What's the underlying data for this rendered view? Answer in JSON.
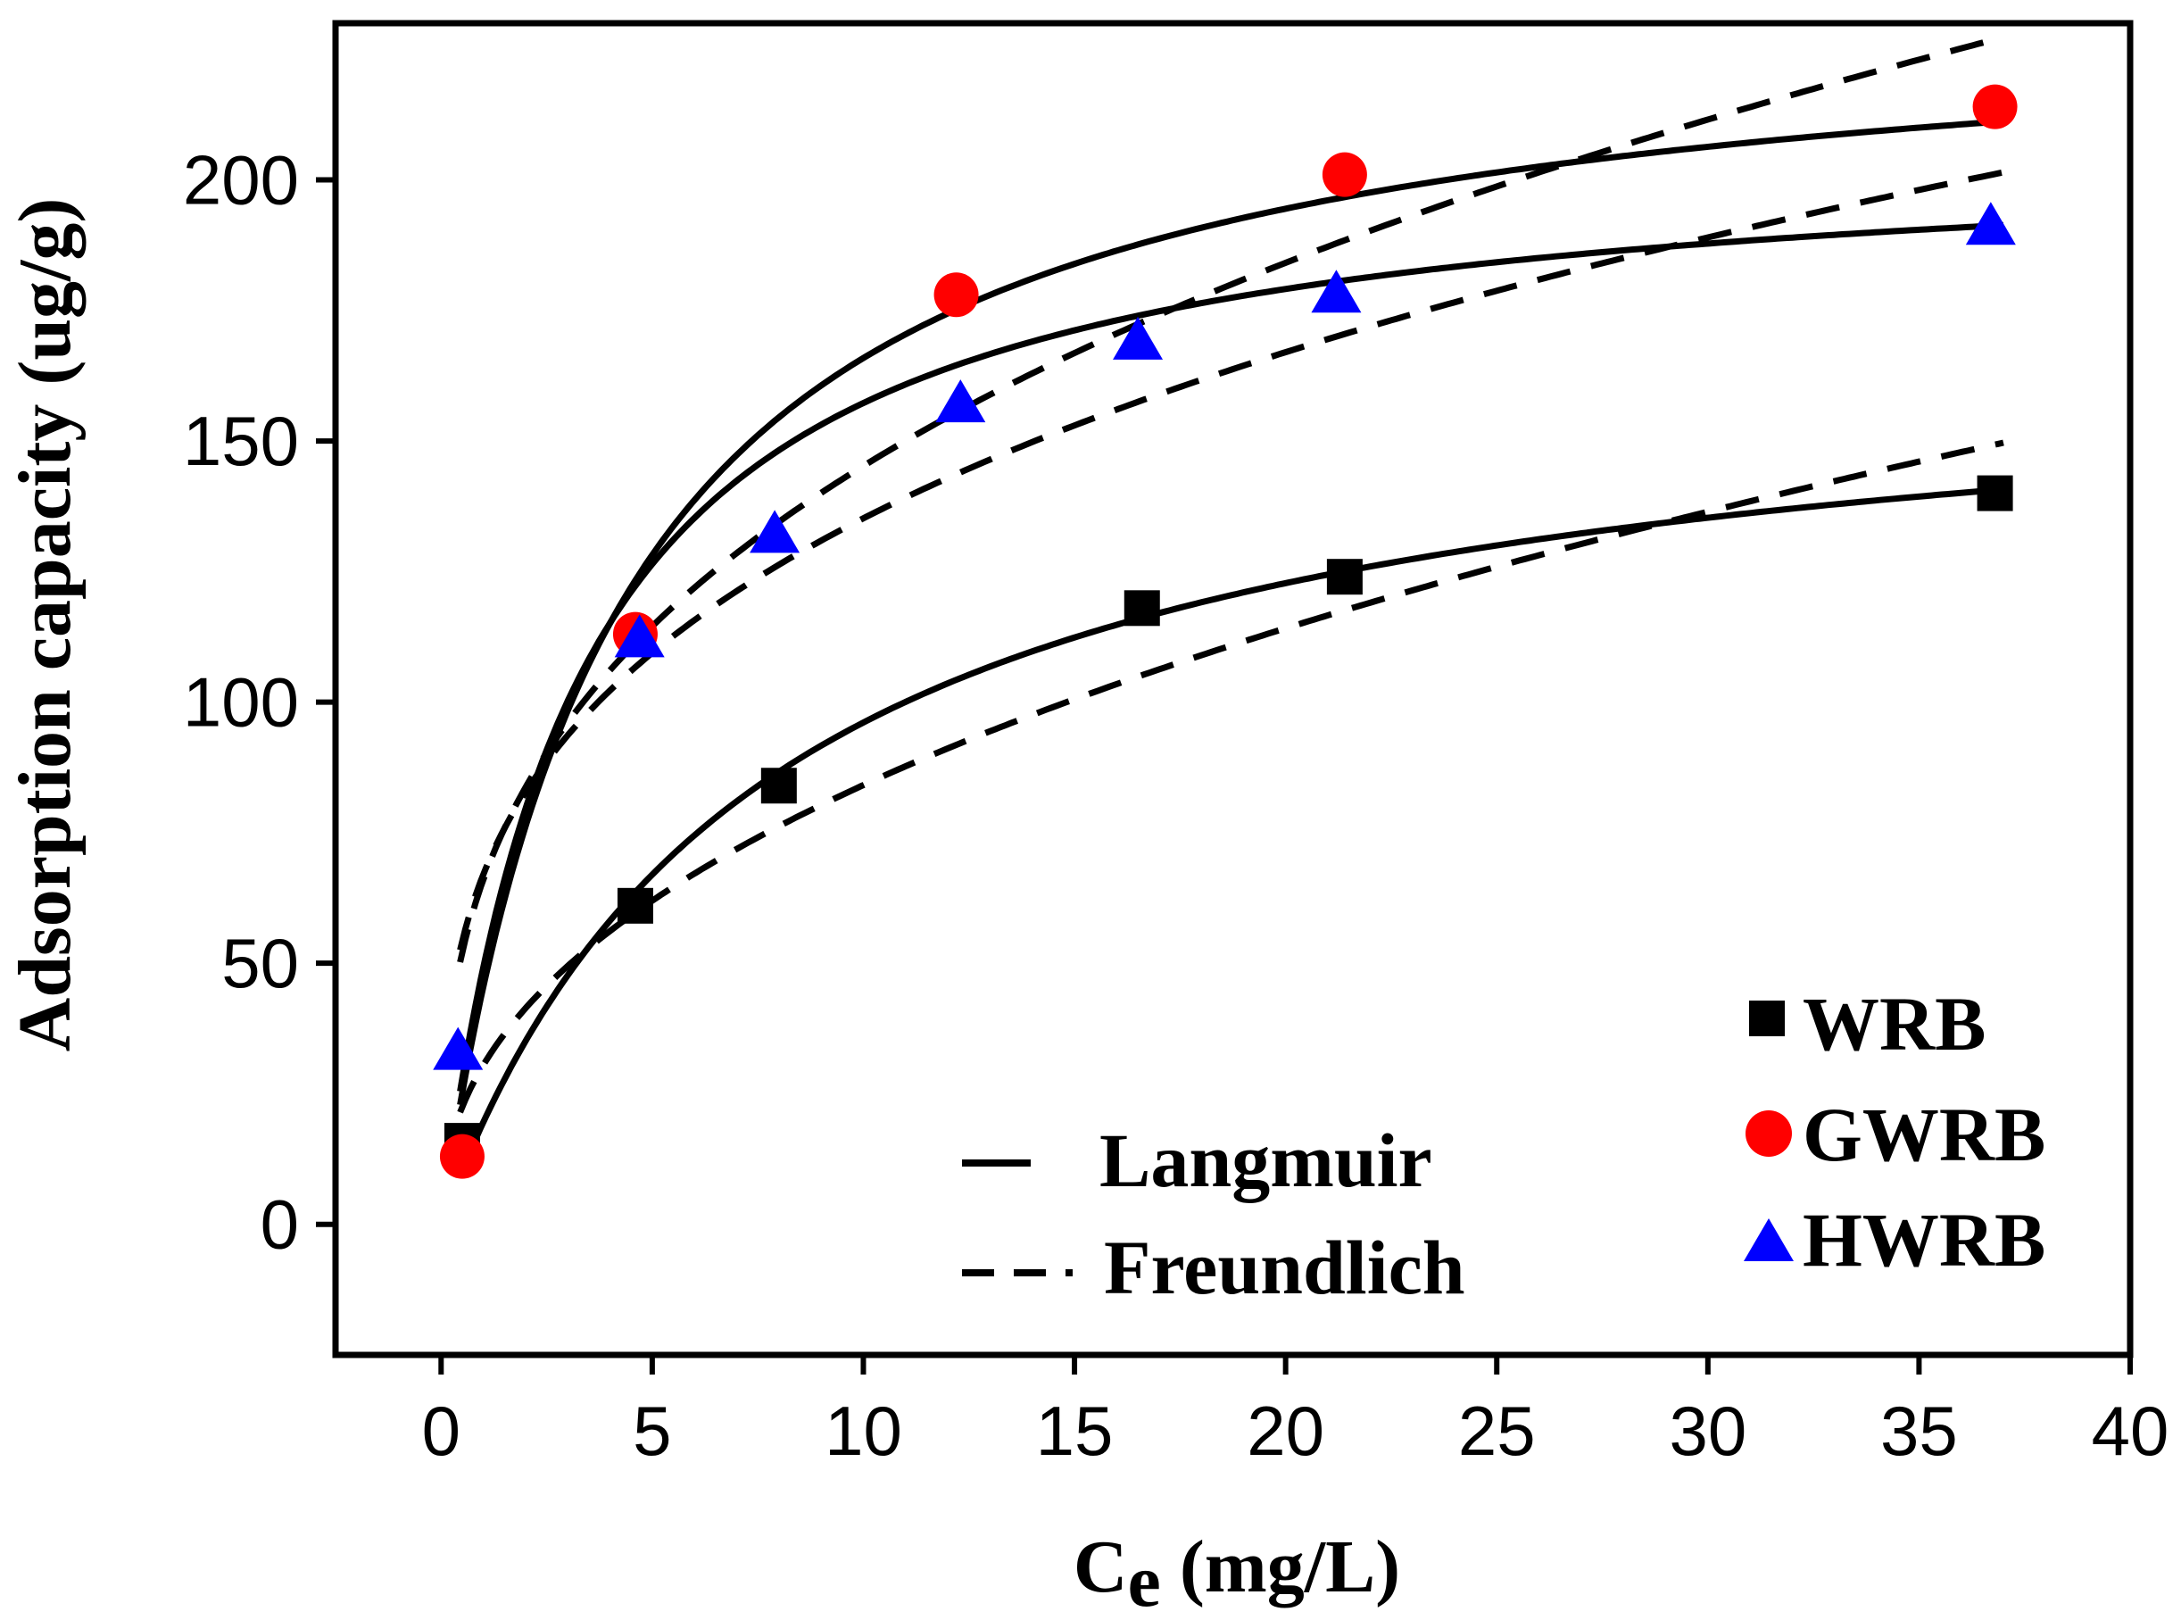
{
  "chart_data": {
    "type": "scatter",
    "title": "",
    "xlabel_main": "C",
    "xlabel_sub": "e",
    "xlabel_unit": " (mg/L)",
    "ylabel": "Adsorption capacity (ug/g)",
    "xlim": [
      -2.5,
      40
    ],
    "ylim": [
      -25,
      230
    ],
    "x_ticks": [
      0,
      5,
      10,
      15,
      20,
      25,
      30,
      35,
      40
    ],
    "y_ticks": [
      0,
      50,
      100,
      150,
      200
    ],
    "grid": false,
    "series": [
      {
        "name": "WRB",
        "marker": "square",
        "color": "#000000",
        "x": [
          0.5,
          4.6,
          8.0,
          16.6,
          21.4,
          36.8
        ],
        "y": [
          16,
          61,
          84,
          118,
          124,
          140
        ],
        "langmuir": {
          "qmax": 170,
          "K": 0.13
        },
        "freundlich": {
          "K": 30.5,
          "n": 2.27
        }
      },
      {
        "name": "GWRB",
        "marker": "circle",
        "color": "#ff0000",
        "x": [
          0.5,
          4.6,
          12.2,
          21.4,
          36.8
        ],
        "y": [
          13,
          113,
          178,
          201,
          214
        ],
        "langmuir": {
          "qmax": 235,
          "K": 0.24
        },
        "freundlich": {
          "K": 66,
          "n": 2.92
        }
      },
      {
        "name": "HWRB",
        "marker": "triangle",
        "color": "#0000ff",
        "x": [
          0.4,
          4.7,
          7.9,
          12.3,
          16.5,
          21.2,
          36.7
        ],
        "y": [
          33,
          112,
          132,
          157,
          169,
          178,
          191
        ],
        "langmuir": {
          "qmax": 208,
          "K": 0.31
        },
        "freundlich": {
          "K": 67,
          "n": 3.28
        }
      }
    ],
    "fit_legend": [
      {
        "name": "Langmuir",
        "style": "solid"
      },
      {
        "name": "Freundlich",
        "style": "dashed"
      }
    ],
    "marker_legend_placement": "bottom-right",
    "fit_legend_placement": "bottom-center"
  }
}
